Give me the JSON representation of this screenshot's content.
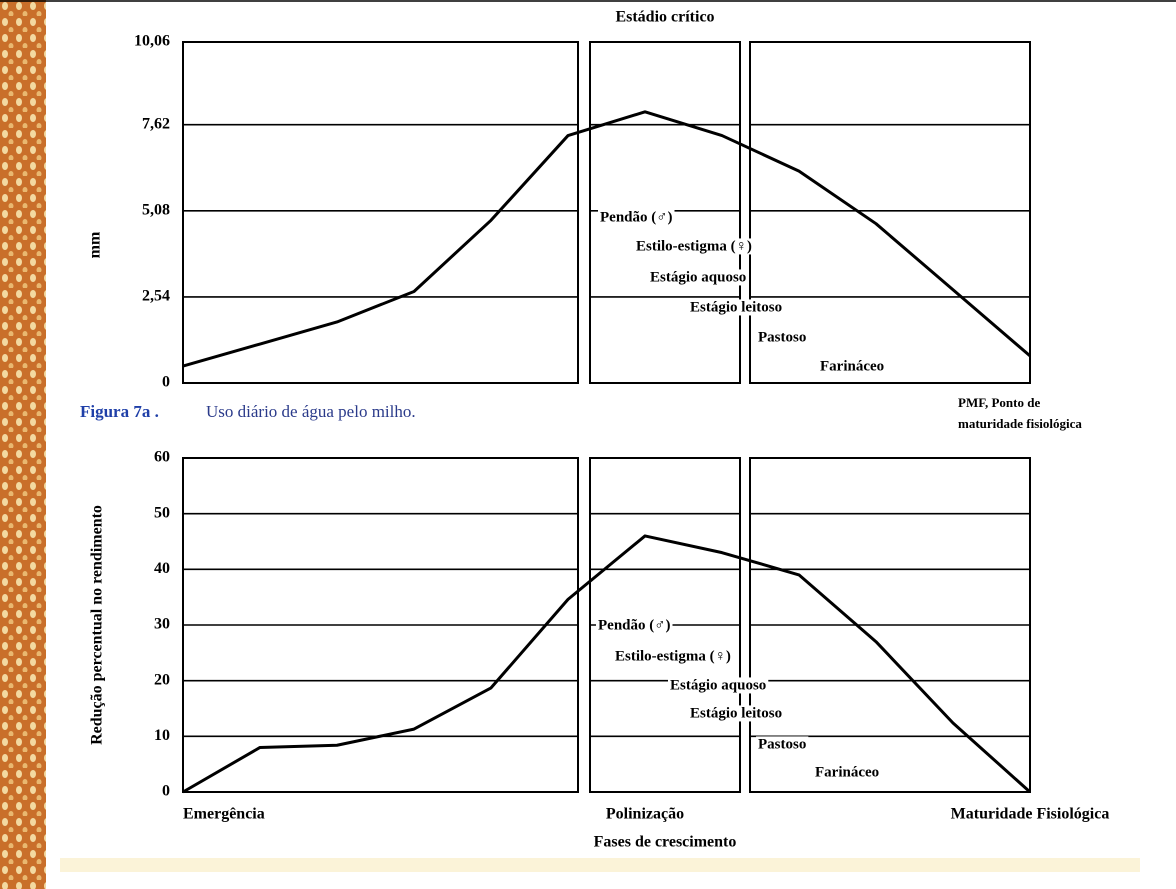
{
  "chart_data": [
    {
      "type": "line",
      "title": "Estádio crítico",
      "ylabel": "mm",
      "caption_label": "Figura 7a .",
      "caption": "Uso diário de água pelo milho.",
      "note": [
        "PMF, Ponto de",
        "maturidade fisiológica"
      ],
      "categories": [
        null,
        null,
        null,
        null,
        null,
        null,
        null,
        null,
        null,
        null,
        null,
        null
      ],
      "series": [
        {
          "color": "#000000",
          "values": [
            0.5,
            1.15,
            1.8,
            2.7,
            4.8,
            7.3,
            8.0,
            7.3,
            6.25,
            4.7,
            2.75,
            0.8
          ]
        }
      ],
      "ylim": [
        0,
        10.06
      ],
      "yticks": [
        0,
        {
          "value": 2.54,
          "label": "2,54"
        },
        {
          "value": 5.08,
          "label": "5,08"
        },
        {
          "value": 7.62,
          "label": "7,62"
        },
        {
          "value": 10.06,
          "label": "10,06"
        }
      ],
      "grid": true,
      "stages": [
        "Pendão (♂)",
        "Estilo-estigma (♀)",
        "Estágio aquoso",
        "Estágio leitoso",
        "Pastoso",
        "Farináceo"
      ]
    },
    {
      "type": "line",
      "ylabel": "Redução percentual no rendimento",
      "xlabel": "Fases de crescimento",
      "categories": [
        "Emergência",
        null,
        null,
        null,
        null,
        null,
        "Polinização",
        null,
        null,
        null,
        null,
        "Maturidade Fisiológica"
      ],
      "series": [
        {
          "color": "#000000",
          "values": [
            0,
            8,
            8.4,
            11.3,
            18.7,
            34.6,
            46,
            43,
            39,
            27,
            12.4,
            0
          ]
        }
      ],
      "ylim": [
        0,
        60
      ],
      "yticks": [
        0,
        10,
        20,
        30,
        40,
        50,
        60
      ],
      "grid": true,
      "stages": [
        "Pendão (♂)",
        "Estilo-estigma (♀)",
        "Estágio aquoso",
        "Estágio leitoso",
        "Pastoso",
        "Farináceo"
      ]
    }
  ]
}
